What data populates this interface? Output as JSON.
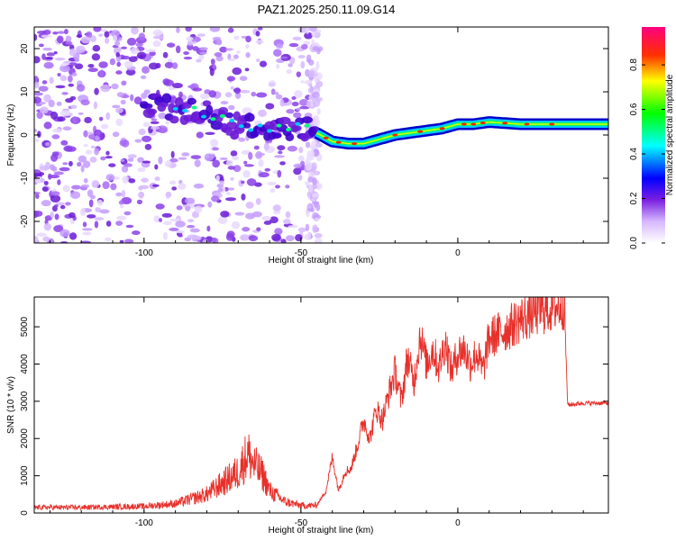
{
  "title": "PAZ1.2025.250.11.09.G14",
  "chart_data": [
    {
      "type": "heatmap",
      "xlabel": "Height of straight line (km)",
      "ylabel": "Frequency (Hz)",
      "xlim": [
        -135,
        48
      ],
      "ylim": [
        -25,
        25
      ],
      "xticks": [
        -100,
        -50,
        0
      ],
      "yticks": [
        -20,
        -10,
        0,
        10,
        20
      ],
      "colorbar": {
        "label": "Normalized spectral amplitude",
        "range": [
          0,
          0.97
        ],
        "ticks": [
          0.0,
          0.2,
          0.4,
          0.6,
          0.8
        ]
      },
      "ridge_frequency": {
        "height_km": [
          -100,
          -90,
          -80,
          -70,
          -60,
          -50,
          -45,
          -40,
          -35,
          -30,
          -25,
          -20,
          -15,
          -10,
          -5,
          0,
          5,
          10,
          20,
          30,
          40,
          48
        ],
        "frequency_hz": [
          7,
          6,
          5,
          2,
          1,
          2,
          0.5,
          -1.5,
          -2,
          -2,
          -1,
          0,
          0.5,
          1,
          1.5,
          2.5,
          2.5,
          3,
          2.5,
          2.5,
          2.5,
          2.5
        ]
      }
    },
    {
      "type": "line",
      "xlabel": "Height of straight line (km)",
      "ylabel": "SNR (10 * v/v)",
      "xlim": [
        -135,
        48
      ],
      "ylim": [
        0,
        5800
      ],
      "xticks": [
        -100,
        -50,
        0
      ],
      "yticks": [
        0,
        1000,
        2000,
        3000,
        4000,
        5000
      ],
      "color": "#e8302a",
      "series": [
        {
          "x": [
            -135,
            -120,
            -100,
            -90,
            -80,
            -75,
            -70,
            -67,
            -65,
            -62,
            -60,
            -55,
            -50,
            -45,
            -42,
            -40,
            -38,
            -36,
            -34,
            -32,
            -30,
            -28,
            -26,
            -24,
            -22,
            -20,
            -18,
            -16,
            -14,
            -12,
            -10,
            -8,
            -6,
            -4,
            -2,
            0,
            2,
            4,
            6,
            8,
            10,
            15,
            20,
            25,
            30,
            34,
            35,
            40,
            48
          ],
          "y": [
            150,
            150,
            180,
            250,
            500,
            800,
            1100,
            1600,
            1300,
            1000,
            600,
            300,
            200,
            200,
            600,
            1500,
            600,
            1100,
            1200,
            1800,
            2500,
            2000,
            2800,
            2500,
            3200,
            3800,
            3000,
            4200,
            3500,
            4800,
            4000,
            4400,
            3900,
            4600,
            3800,
            4300,
            4400,
            4000,
            4300,
            3800,
            4700,
            4900,
            5200,
            5400,
            5500,
            5600,
            2900,
            2950,
            2950
          ]
        }
      ]
    }
  ]
}
